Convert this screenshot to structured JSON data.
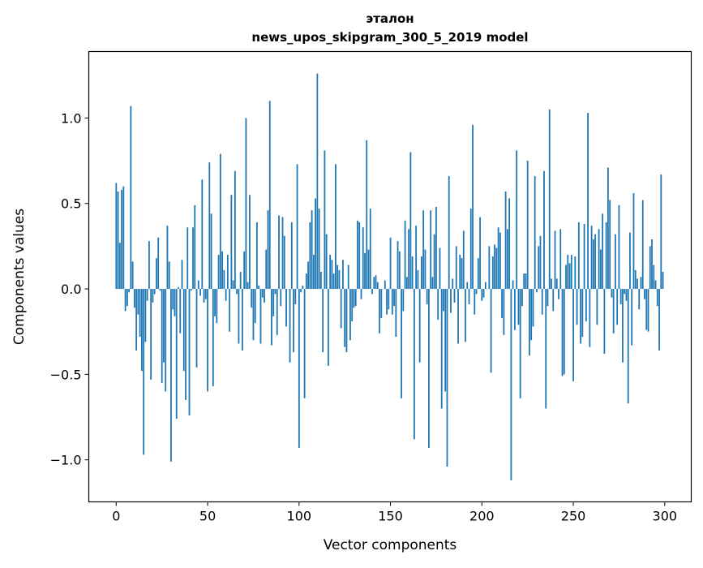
{
  "chart_data": {
    "type": "bar",
    "title": [
      "эталон",
      "news_upos_skipgram_300_5_2019 model"
    ],
    "xlabel": "Vector components",
    "ylabel": "Components values",
    "xlim": [
      -15,
      314.5
    ],
    "ylim": [
      -1.246,
      1.389
    ],
    "xticks": [
      0,
      50,
      100,
      150,
      200,
      250,
      300
    ],
    "xtick_labels": [
      "0",
      "50",
      "100",
      "150",
      "200",
      "250",
      "300"
    ],
    "yticks": [
      -1.0,
      -0.5,
      0.0,
      0.5,
      1.0
    ],
    "ytick_labels": [
      "−1.0",
      "−0.5",
      "0.0",
      "0.5",
      "1.0"
    ],
    "grid": false,
    "color": "#1f77b4",
    "bar_width": 0.8,
    "values": [
      0.62,
      0.57,
      0.27,
      0.58,
      0.6,
      -0.13,
      -0.1,
      -0.02,
      1.07,
      0.16,
      -0.11,
      -0.36,
      -0.15,
      -0.28,
      -0.48,
      -0.97,
      -0.31,
      -0.07,
      0.28,
      -0.53,
      -0.08,
      -0.03,
      0.18,
      0.3,
      -0.01,
      -0.55,
      -0.43,
      -0.6,
      0.37,
      0.16,
      -1.01,
      -0.12,
      -0.16,
      -0.76,
      0.01,
      -0.26,
      0.17,
      -0.48,
      -0.65,
      0.36,
      -0.74,
      -0.01,
      0.36,
      0.49,
      -0.46,
      0.05,
      -0.04,
      0.64,
      -0.08,
      -0.06,
      -0.6,
      0.74,
      0.44,
      -0.57,
      -0.16,
      -0.2,
      0.2,
      0.79,
      0.22,
      0.11,
      -0.07,
      0.2,
      -0.25,
      0.55,
      0.05,
      0.69,
      -0.03,
      -0.32,
      0.1,
      -0.36,
      0.22,
      1.0,
      0.04,
      0.55,
      -0.11,
      -0.3,
      -0.2,
      0.39,
      0.02,
      -0.32,
      -0.05,
      -0.08,
      0.23,
      0.46,
      1.1,
      -0.33,
      -0.16,
      -0.03,
      -0.27,
      0.43,
      -0.1,
      0.42,
      0.31,
      -0.22,
      0.0,
      -0.43,
      0.39,
      -0.37,
      -0.09,
      0.73,
      -0.93,
      -0.02,
      0.02,
      -0.64,
      0.09,
      0.16,
      0.39,
      0.46,
      0.2,
      0.53,
      1.26,
      0.47,
      0.1,
      -0.37,
      0.81,
      0.32,
      -0.45,
      0.2,
      0.17,
      0.09,
      0.73,
      0.14,
      0.11,
      -0.23,
      0.17,
      -0.34,
      -0.37,
      0.14,
      -0.3,
      -0.19,
      -0.11,
      -0.1,
      0.4,
      0.39,
      -0.06,
      0.36,
      0.21,
      0.87,
      0.23,
      0.47,
      -0.03,
      0.07,
      0.08,
      0.04,
      -0.26,
      -0.17,
      0.0,
      0.05,
      -0.15,
      -0.12,
      0.3,
      -0.15,
      -0.1,
      -0.28,
      0.28,
      0.22,
      -0.64,
      -0.13,
      0.4,
      0.07,
      0.35,
      0.8,
      0.19,
      -0.88,
      0.37,
      0.11,
      -0.43,
      0.19,
      0.46,
      0.23,
      -0.09,
      -0.93,
      0.46,
      0.07,
      0.32,
      0.48,
      -0.18,
      0.24,
      -0.7,
      -0.13,
      -0.6,
      -1.04,
      0.66,
      -0.14,
      0.06,
      -0.08,
      0.25,
      -0.32,
      0.2,
      0.18,
      0.34,
      -0.31,
      0.04,
      -0.09,
      0.47,
      0.96,
      -0.15,
      -0.03,
      0.18,
      0.42,
      -0.07,
      -0.05,
      0.04,
      0.0,
      0.25,
      -0.49,
      0.19,
      0.26,
      0.24,
      0.36,
      0.33,
      -0.17,
      -0.27,
      0.57,
      0.35,
      0.53,
      -1.12,
      0.05,
      -0.24,
      0.81,
      -0.21,
      -0.64,
      -0.1,
      0.09,
      0.09,
      0.75,
      -0.39,
      -0.3,
      -0.22,
      0.66,
      -0.02,
      0.25,
      0.31,
      -0.15,
      0.69,
      -0.7,
      -0.1,
      1.05,
      0.06,
      -0.13,
      0.34,
      0.06,
      -0.06,
      0.35,
      -0.51,
      -0.5,
      0.14,
      0.2,
      0.15,
      0.2,
      -0.54,
      0.19,
      -0.21,
      0.39,
      -0.32,
      -0.28,
      0.38,
      -0.19,
      1.03,
      -0.34,
      0.37,
      0.29,
      0.32,
      -0.21,
      0.35,
      0.23,
      0.44,
      -0.38,
      0.39,
      0.71,
      0.52,
      -0.05,
      -0.26,
      0.32,
      -0.21,
      0.49,
      -0.09,
      -0.43,
      -0.03,
      -0.07,
      -0.67,
      0.33,
      -0.33,
      0.56,
      0.11,
      0.06,
      -0.12,
      0.07,
      0.52,
      -0.06,
      -0.24,
      -0.25,
      0.25,
      0.29,
      0.14,
      0.05,
      -0.1,
      -0.36,
      0.67,
      0.1
    ]
  }
}
